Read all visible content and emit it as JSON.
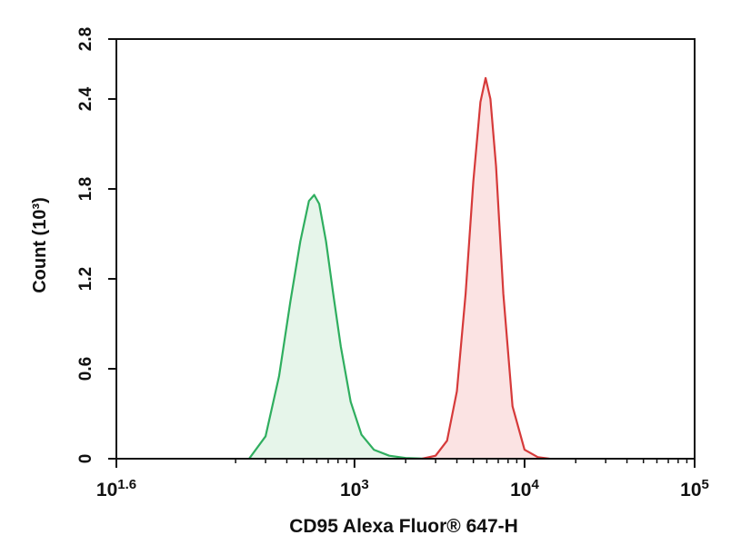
{
  "chart_data": {
    "type": "area",
    "xlabel": "CD95 Alexa Fluor® 647-H",
    "ylabel": "Count (10³)",
    "x_scale": "log",
    "xlim": [
      39.8,
      100000
    ],
    "ylim": [
      0,
      2.8
    ],
    "x_ticks": [
      {
        "base": "10",
        "exp": "1.6"
      },
      {
        "base": "10",
        "exp": "3"
      },
      {
        "base": "10",
        "exp": "4"
      },
      {
        "base": "10",
        "exp": "5"
      }
    ],
    "y_ticks": [
      "0",
      "0.6",
      "1.2",
      "1.8",
      "2.4",
      "2.8"
    ],
    "grid": false,
    "legend": "none",
    "series": [
      {
        "color": "#2fae5f",
        "fill": "#e6f5ea",
        "x": [
          240,
          300,
          360,
          420,
          480,
          540,
          580,
          620,
          680,
          750,
          830,
          950,
          1100,
          1300,
          1600,
          2000,
          2500,
          3000
        ],
        "y": [
          0,
          0.15,
          0.55,
          1.05,
          1.45,
          1.72,
          1.76,
          1.7,
          1.45,
          1.1,
          0.75,
          0.38,
          0.16,
          0.06,
          0.02,
          0.005,
          0.001,
          0
        ]
      },
      {
        "color": "#d63a3a",
        "fill": "#fbe3e3",
        "x": [
          2500,
          3000,
          3500,
          4000,
          4500,
          5000,
          5500,
          5900,
          6300,
          6800,
          7500,
          8500,
          10000,
          12000,
          14000
        ],
        "y": [
          0,
          0.02,
          0.12,
          0.45,
          1.1,
          1.85,
          2.38,
          2.54,
          2.4,
          1.95,
          1.1,
          0.35,
          0.06,
          0.01,
          0
        ]
      }
    ]
  }
}
